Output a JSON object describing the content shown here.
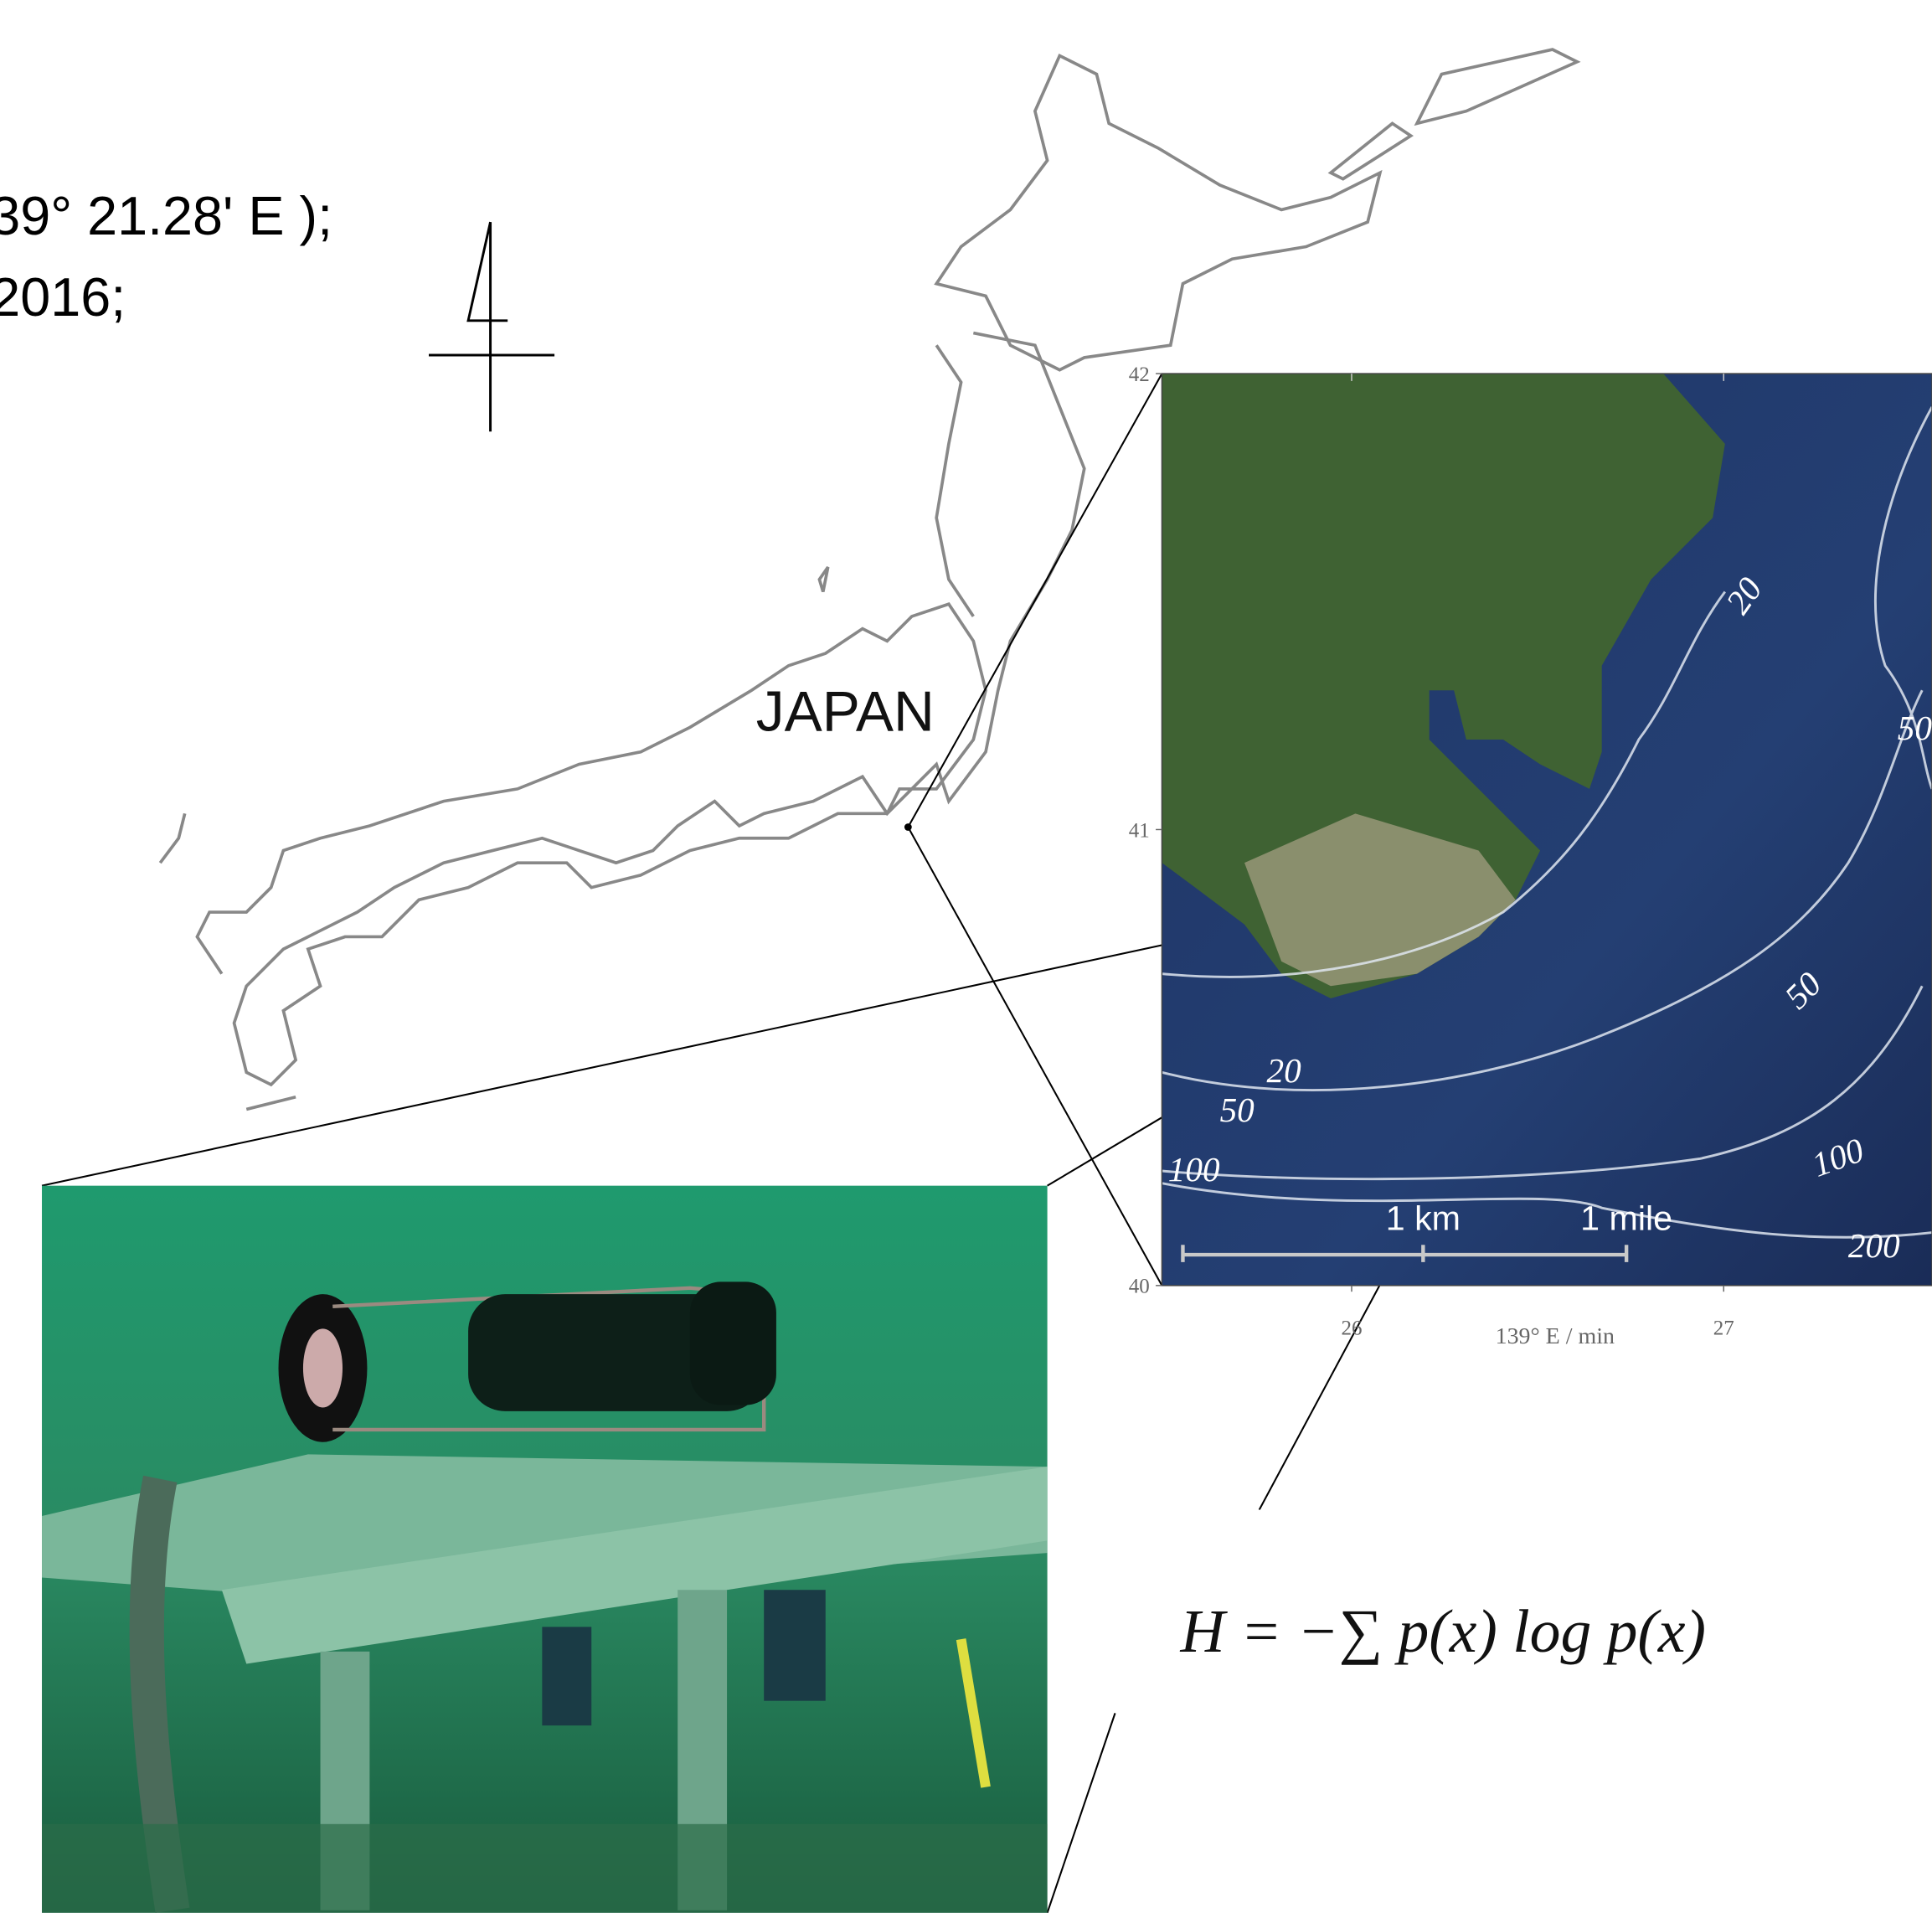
{
  "header": {
    "lines": [
      "39° 21.28' E );",
      "2016;"
    ]
  },
  "japan_label": "JAPAN",
  "map": {
    "ylim": [
      40,
      42
    ],
    "yticks": [
      40,
      41,
      42
    ],
    "xlim": [
      25.49,
      27.56
    ],
    "xticks": [
      26,
      27
    ],
    "xlabel": "139° E / min",
    "contour_labels": [
      "20",
      "20",
      "50",
      "50",
      "50",
      "100",
      "100",
      "200"
    ],
    "scale_labels": [
      "1 km",
      "1 mile"
    ]
  },
  "formula": "H = −∑ p(x) log p(x)"
}
